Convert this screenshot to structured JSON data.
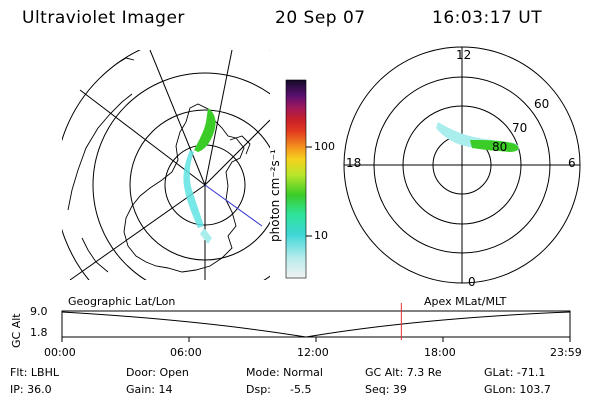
{
  "header": {
    "instrument": "Ultraviolet Imager",
    "date": "20 Sep 07",
    "time": "16:03:17 UT"
  },
  "colorbar": {
    "label": "photon cm⁻²s⁻¹",
    "ticks": [
      "100",
      "10"
    ]
  },
  "polar_plot": {
    "mlt_top": "12",
    "mlt_left": "18",
    "mlt_right": "6",
    "mlt_bottom": "0",
    "lat_60": "60",
    "lat_70": "70",
    "lat_80": "80"
  },
  "panel_labels": {
    "left": "Geographic Lat/Lon",
    "right": "Apex MLat/MLT"
  },
  "altitude_plot": {
    "ylabel": "GC Alt",
    "ymax": "9.0",
    "ymin": "1.8",
    "xticks": [
      "00:00",
      "06:00",
      "12:00",
      "18:00",
      "23:59"
    ],
    "current_time_fraction": 0.668
  },
  "status": {
    "flt": "Flt: LBHL",
    "ip": "IP: 36.0",
    "door": "Door: Open",
    "gain": "Gain: 14",
    "mode": "Mode: Normal",
    "dsp_label": "Dsp:",
    "dsp_value": "-5.5",
    "gc_alt": "GC Alt: 7.3 Re",
    "seq": "Seq: 39",
    "glat": "GLat: -71.1",
    "glon": "GLon: 103.7"
  },
  "colors": {
    "aurora_cyan": "#5fe3e3",
    "aurora_green": "#3ccc28",
    "time_marker": "#e03030",
    "geo_line": "#3030d0"
  }
}
